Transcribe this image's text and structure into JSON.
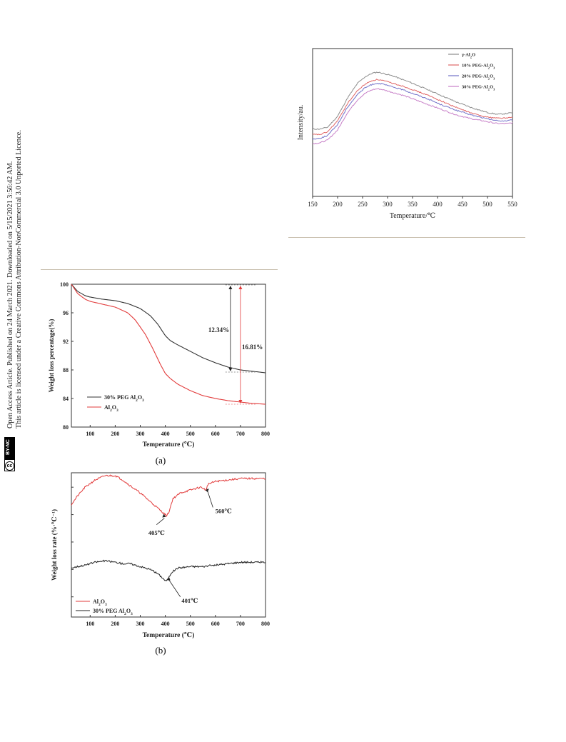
{
  "sidebar": {
    "line1": "Open Access Article. Published on 24 March 2021. Downloaded on 5/15/2021 3:56:42 AM.",
    "line2": "This article is licensed under a Creative Commons Attribution-NonCommercial 3.0 Unported Licence.",
    "badge_cc": "cc",
    "badge_license": "BY-NC"
  },
  "figures": {
    "caption_a": "(a)",
    "caption_b": "(b)"
  },
  "chart_data": [
    {
      "id": "xrd_intensity",
      "type": "line",
      "xlabel": "Temperature/℃",
      "ylabel": "Intensity/au.",
      "xlim": [
        150,
        550
      ],
      "xticks": [
        "150",
        "200",
        "250",
        "300",
        "350",
        "400",
        "450",
        "500",
        "550"
      ],
      "legend_position": "top-right",
      "series": [
        {
          "name": "γ-Al2O",
          "color": "#8c8c8c",
          "x": [
            150,
            165,
            180,
            200,
            220,
            240,
            255,
            270,
            280,
            290,
            310,
            330,
            350,
            380,
            410,
            440,
            470,
            500,
            520,
            540,
            550
          ],
          "y": [
            0.38,
            0.38,
            0.4,
            0.52,
            0.72,
            0.88,
            0.95,
            0.99,
            1.0,
            0.99,
            0.96,
            0.92,
            0.88,
            0.81,
            0.74,
            0.67,
            0.61,
            0.56,
            0.54,
            0.55,
            0.56
          ]
        },
        {
          "name": "10% PEG-Al2O3",
          "color": "#e06666",
          "x": [
            150,
            165,
            180,
            200,
            220,
            240,
            255,
            270,
            280,
            290,
            310,
            330,
            350,
            380,
            410,
            440,
            470,
            500,
            520,
            540,
            550
          ],
          "y": [
            0.32,
            0.32,
            0.35,
            0.47,
            0.66,
            0.8,
            0.87,
            0.91,
            0.92,
            0.91,
            0.88,
            0.85,
            0.81,
            0.75,
            0.68,
            0.61,
            0.55,
            0.51,
            0.5,
            0.5,
            0.51
          ]
        },
        {
          "name": "20% PEG-Al2O3",
          "color": "#7070c8",
          "x": [
            150,
            165,
            180,
            200,
            220,
            240,
            255,
            270,
            280,
            290,
            310,
            330,
            350,
            380,
            410,
            440,
            470,
            500,
            520,
            540,
            550
          ],
          "y": [
            0.27,
            0.28,
            0.31,
            0.43,
            0.62,
            0.76,
            0.83,
            0.87,
            0.88,
            0.87,
            0.84,
            0.81,
            0.77,
            0.71,
            0.64,
            0.58,
            0.53,
            0.49,
            0.47,
            0.47,
            0.48
          ]
        },
        {
          "name": "30% PEG-Al2O3",
          "color": "#c77fc7",
          "x": [
            150,
            165,
            180,
            200,
            220,
            240,
            255,
            270,
            280,
            290,
            310,
            330,
            350,
            380,
            410,
            440,
            470,
            500,
            520,
            540,
            550
          ],
          "y": [
            0.22,
            0.23,
            0.26,
            0.37,
            0.56,
            0.7,
            0.77,
            0.81,
            0.82,
            0.81,
            0.78,
            0.75,
            0.71,
            0.65,
            0.59,
            0.53,
            0.49,
            0.46,
            0.44,
            0.44,
            0.45
          ]
        }
      ]
    },
    {
      "id": "tga",
      "type": "line",
      "xlabel": "Temperature (℃)",
      "ylabel": "Weight loss percentage(%)",
      "xlim": [
        25,
        800
      ],
      "ylim": [
        80,
        100
      ],
      "xticks": [
        "100",
        "200",
        "300",
        "400",
        "500",
        "600",
        "700",
        "800"
      ],
      "yticks": [
        "80",
        "84",
        "88",
        "92",
        "96",
        "100"
      ],
      "legend_position": "bottom-left",
      "annotations": [
        "12.34%",
        "16.81%"
      ],
      "series": [
        {
          "name": "30% PEG Al2O3",
          "color": "#333333",
          "x": [
            25,
            50,
            80,
            100,
            150,
            200,
            250,
            300,
            340,
            370,
            400,
            420,
            450,
            500,
            550,
            600,
            650,
            700,
            750,
            800
          ],
          "y": [
            100,
            99.0,
            98.4,
            98.2,
            97.9,
            97.7,
            97.3,
            96.6,
            95.6,
            94.4,
            92.8,
            92.1,
            91.5,
            90.6,
            89.7,
            89.0,
            88.4,
            88.0,
            87.8,
            87.6
          ]
        },
        {
          "name": "Al2O3",
          "color": "#e23b3b",
          "x": [
            25,
            50,
            80,
            100,
            150,
            200,
            250,
            280,
            320,
            350,
            380,
            400,
            420,
            450,
            500,
            550,
            600,
            650,
            700,
            750,
            800
          ],
          "y": [
            100,
            98.7,
            97.9,
            97.6,
            97.2,
            96.8,
            96.0,
            95.0,
            93.0,
            91.0,
            88.8,
            87.5,
            86.8,
            86.0,
            85.1,
            84.4,
            84.0,
            83.7,
            83.5,
            83.3,
            83.2
          ]
        }
      ]
    },
    {
      "id": "dtg",
      "type": "line",
      "xlabel": "Temperature (℃)",
      "ylabel": "Weight loss rate (%·℃⁻¹)",
      "xlim": [
        25,
        800
      ],
      "xticks": [
        "100",
        "200",
        "300",
        "400",
        "500",
        "600",
        "700",
        "800"
      ],
      "legend_position": "bottom-left",
      "annotations": [
        "560℃",
        "405℃",
        "401℃"
      ],
      "series": [
        {
          "name": "Al2O3",
          "color": "#e23b3b",
          "x": [
            25,
            50,
            80,
            120,
            160,
            200,
            230,
            260,
            300,
            340,
            380,
            400,
            405,
            415,
            430,
            460,
            500,
            540,
            555,
            560,
            570,
            600,
            650,
            700,
            750,
            800
          ],
          "y": [
            0.78,
            0.84,
            0.9,
            0.95,
            0.98,
            0.98,
            0.95,
            0.91,
            0.86,
            0.8,
            0.74,
            0.71,
            0.7,
            0.73,
            0.82,
            0.86,
            0.88,
            0.9,
            0.89,
            0.87,
            0.92,
            0.94,
            0.95,
            0.96,
            0.96,
            0.96
          ]
        },
        {
          "name": "30% PEG Al2O3",
          "color": "#222222",
          "x": [
            25,
            50,
            80,
            120,
            160,
            200,
            230,
            260,
            300,
            340,
            370,
            390,
            401,
            410,
            425,
            450,
            500,
            550,
            600,
            650,
            700,
            750,
            800
          ],
          "y": [
            0.34,
            0.35,
            0.36,
            0.38,
            0.39,
            0.38,
            0.37,
            0.37,
            0.35,
            0.33,
            0.3,
            0.27,
            0.25,
            0.26,
            0.31,
            0.34,
            0.35,
            0.35,
            0.36,
            0.37,
            0.38,
            0.38,
            0.38
          ]
        }
      ]
    }
  ]
}
